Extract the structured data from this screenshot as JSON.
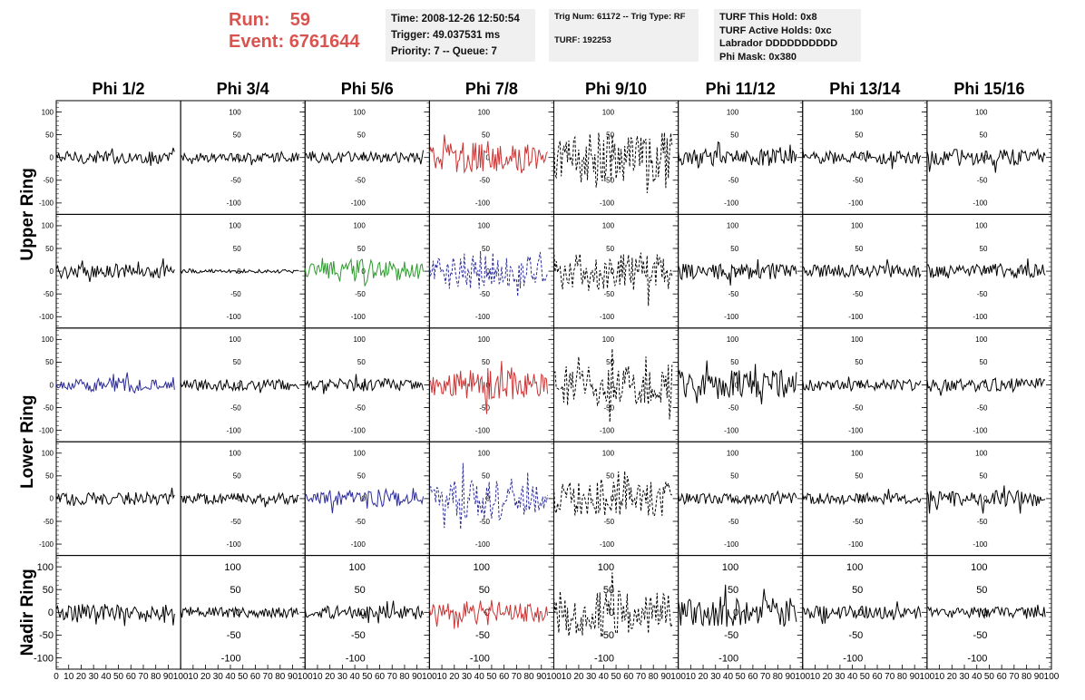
{
  "header": {
    "run_label": "Run:",
    "run_value": "59",
    "event_label": "Event:",
    "event_value": "6761644"
  },
  "info_time": {
    "time": "Time: 2008-12-26 12:50:54",
    "trigger": "Trigger: 49.037531 ms",
    "priority": "Priority: 7 -- Queue: 7"
  },
  "info_trig": {
    "trig": "Trig Num: 61172 -- Trig Type: RF",
    "turf": "TURF: 192253"
  },
  "info_turf": {
    "this_hold": "TURF This Hold: 0x8",
    "active_holds": "TURF Active Holds: 0xc",
    "labrador": "Labrador DDDDDDDDDD",
    "phi_mask": "Phi Mask: 0x380"
  },
  "colors": {
    "black": "#000000",
    "red": "#cc3333",
    "green": "#2e9a2e",
    "blue": "#2a2a9a"
  },
  "chart_data": {
    "type": "line",
    "columns": [
      "Phi 1/2",
      "Phi 3/4",
      "Phi 5/6",
      "Phi 7/8",
      "Phi 9/10",
      "Phi 11/12",
      "Phi 13/14",
      "Phi 15/16"
    ],
    "rows": [
      "Upper Ring",
      "Upper Ring",
      "Lower Ring",
      "Lower Ring",
      "Nadir Ring"
    ],
    "row_labels": [
      "Upper Ring",
      "Lower Ring",
      "Nadir Ring"
    ],
    "xlim": [
      0,
      100
    ],
    "ylim": [
      -125,
      125
    ],
    "x_ticks": [
      "0",
      "10",
      "20",
      "30",
      "40",
      "50",
      "60",
      "70",
      "80",
      "90",
      "100"
    ],
    "y_ticks": [
      "100",
      "50",
      "0",
      "-50",
      "-100"
    ],
    "x_samples": 95,
    "grid": false,
    "panels": [
      [
        {
          "amp": 14,
          "color": "black",
          "dashed": false
        },
        {
          "amp": 10,
          "color": "black",
          "dashed": false
        },
        {
          "amp": 12,
          "color": "black",
          "dashed": false
        },
        {
          "amp": 38,
          "color": "red",
          "dashed": false
        },
        {
          "amp": 55,
          "color": "black",
          "dashed": true
        },
        {
          "amp": 18,
          "color": "black",
          "dashed": false
        },
        {
          "amp": 14,
          "color": "black",
          "dashed": false
        },
        {
          "amp": 18,
          "color": "black",
          "dashed": false
        }
      ],
      [
        {
          "amp": 16,
          "color": "black",
          "dashed": false
        },
        {
          "amp": 4,
          "color": "black",
          "dashed": false
        },
        {
          "amp": 28,
          "color": "green",
          "dashed": false
        },
        {
          "amp": 45,
          "color": "blue",
          "dashed": true
        },
        {
          "amp": 42,
          "color": "black",
          "dashed": true
        },
        {
          "amp": 18,
          "color": "black",
          "dashed": false
        },
        {
          "amp": 14,
          "color": "black",
          "dashed": false
        },
        {
          "amp": 16,
          "color": "black",
          "dashed": false
        }
      ],
      [
        {
          "amp": 16,
          "color": "blue",
          "dashed": false
        },
        {
          "amp": 12,
          "color": "black",
          "dashed": false
        },
        {
          "amp": 14,
          "color": "black",
          "dashed": false
        },
        {
          "amp": 38,
          "color": "red",
          "dashed": false
        },
        {
          "amp": 45,
          "color": "black",
          "dashed": true
        },
        {
          "amp": 32,
          "color": "black",
          "dashed": false
        },
        {
          "amp": 12,
          "color": "black",
          "dashed": false
        },
        {
          "amp": 15,
          "color": "black",
          "dashed": false
        }
      ],
      [
        {
          "amp": 14,
          "color": "black",
          "dashed": false
        },
        {
          "amp": 12,
          "color": "black",
          "dashed": false
        },
        {
          "amp": 22,
          "color": "blue",
          "dashed": false
        },
        {
          "amp": 48,
          "color": "blue",
          "dashed": true
        },
        {
          "amp": 38,
          "color": "black",
          "dashed": true
        },
        {
          "amp": 12,
          "color": "black",
          "dashed": false
        },
        {
          "amp": 12,
          "color": "black",
          "dashed": false
        },
        {
          "amp": 18,
          "color": "black",
          "dashed": false
        }
      ],
      [
        {
          "amp": 18,
          "color": "black",
          "dashed": false
        },
        {
          "amp": 12,
          "color": "black",
          "dashed": false
        },
        {
          "amp": 14,
          "color": "black",
          "dashed": false
        },
        {
          "amp": 28,
          "color": "red",
          "dashed": false
        },
        {
          "amp": 48,
          "color": "black",
          "dashed": true
        },
        {
          "amp": 32,
          "color": "black",
          "dashed": false
        },
        {
          "amp": 14,
          "color": "black",
          "dashed": false
        },
        {
          "amp": 12,
          "color": "black",
          "dashed": false
        }
      ]
    ]
  }
}
